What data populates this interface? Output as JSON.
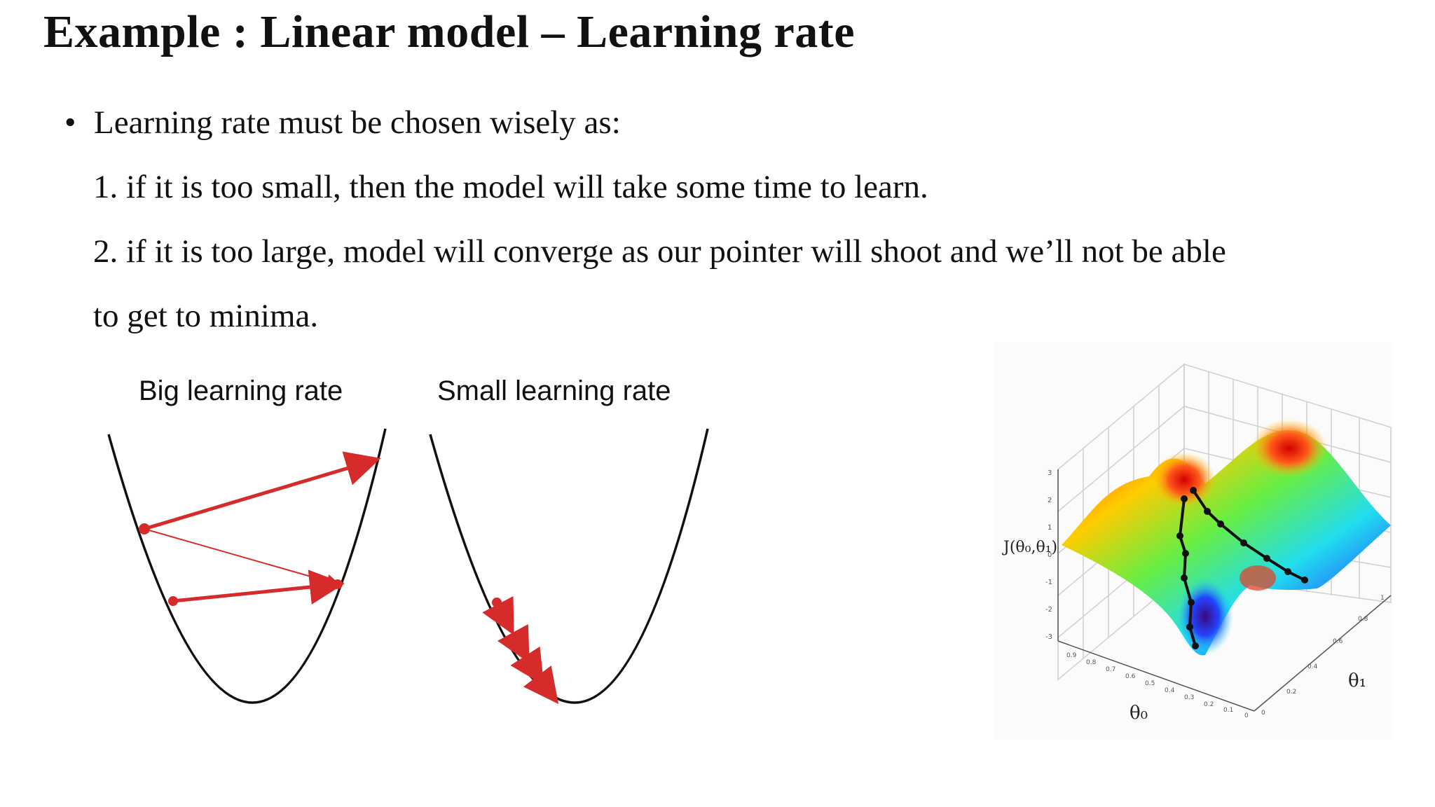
{
  "slide": {
    "title": "Example : Linear model – Learning rate",
    "bullet_symbol": "•",
    "bullet_text": "Learning rate must be chosen wisely as:",
    "points": [
      "1. if it is too small, then the model will take some time to learn.",
      "2. if it is too large, model will converge as our pointer will shoot and we’ll not be able",
      "to get to minima."
    ]
  },
  "figures": {
    "big_label": "Big learning rate",
    "small_label": "Small learning rate",
    "surface": {
      "z_axis_label": "J(θ₀,θ₁)",
      "x_axis_label": "θ₀",
      "y_axis_label": "θ₁",
      "z_ticks": [
        "3",
        "2",
        "1",
        "0",
        "-1",
        "-2",
        "-3"
      ],
      "x_ticks": [
        "0.9",
        "0.8",
        "0.7",
        "0.6",
        "0.5",
        "0.4",
        "0.3",
        "0.2",
        "0.1",
        "0"
      ],
      "y_ticks": [
        "0",
        "0.2",
        "0.4",
        "0.6",
        "0.8",
        "1"
      ]
    }
  },
  "colors": {
    "arrow_red": "#d62b2b",
    "curve": "#111111"
  }
}
